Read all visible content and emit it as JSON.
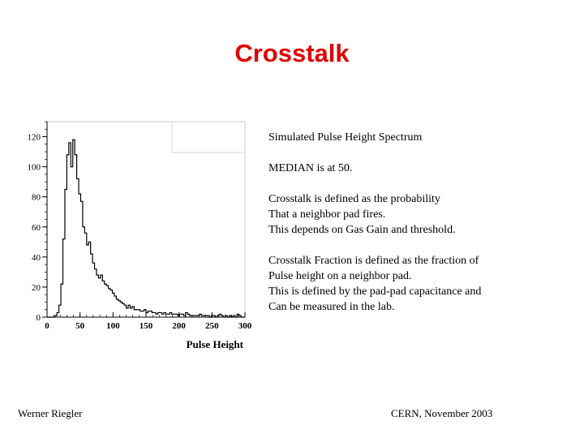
{
  "slide": {
    "title": "Crosstalk",
    "footer_left": "Werner Riegler",
    "footer_right": "CERN, November 2003"
  },
  "text": {
    "heading": "Simulated Pulse Height Spectrum",
    "median": "MEDIAN is at 50.",
    "crosstalk_def": [
      "Crosstalk is defined as the probability",
      "That a neighbor pad fires.",
      "This depends on Gas Gain and threshold."
    ],
    "fraction_def": [
      "Crosstalk Fraction  is defined as the fraction of",
      "Pulse height on a neighbor pad.",
      "This is defined by the pad-pad capacitance and",
      "Can be measured in the lab."
    ]
  },
  "chart_data": {
    "type": "bar",
    "xlabel": "Pulse Height",
    "ylabel": "",
    "xlim": [
      0,
      300
    ],
    "ylim": [
      0,
      130
    ],
    "x_ticks": [
      "0",
      "50",
      "100",
      "150",
      "200",
      "250",
      "300"
    ],
    "y_ticks": [
      "0",
      "20",
      "40",
      "60",
      "80",
      "100",
      "120"
    ],
    "bin_width": 3,
    "values": [
      0,
      0,
      0,
      0,
      1,
      3,
      8,
      22,
      52,
      85,
      108,
      116,
      100,
      118,
      108,
      92,
      82,
      77,
      60,
      56,
      48,
      50,
      42,
      36,
      32,
      28,
      26,
      28,
      24,
      22,
      21,
      19,
      18,
      16,
      14,
      12,
      11,
      10,
      9,
      8,
      6,
      8,
      6,
      7,
      5,
      5,
      5,
      4,
      4,
      5,
      3,
      4,
      4,
      3,
      3,
      2,
      3,
      3,
      2,
      3,
      2,
      2,
      3,
      2,
      2,
      2,
      1,
      2,
      2,
      1,
      3,
      2,
      1,
      1,
      1,
      1,
      1,
      2,
      1,
      1,
      1,
      1,
      0,
      1,
      1,
      0,
      1,
      2,
      1,
      0,
      1,
      0,
      1,
      0,
      1,
      0,
      2,
      1,
      0,
      0
    ]
  }
}
